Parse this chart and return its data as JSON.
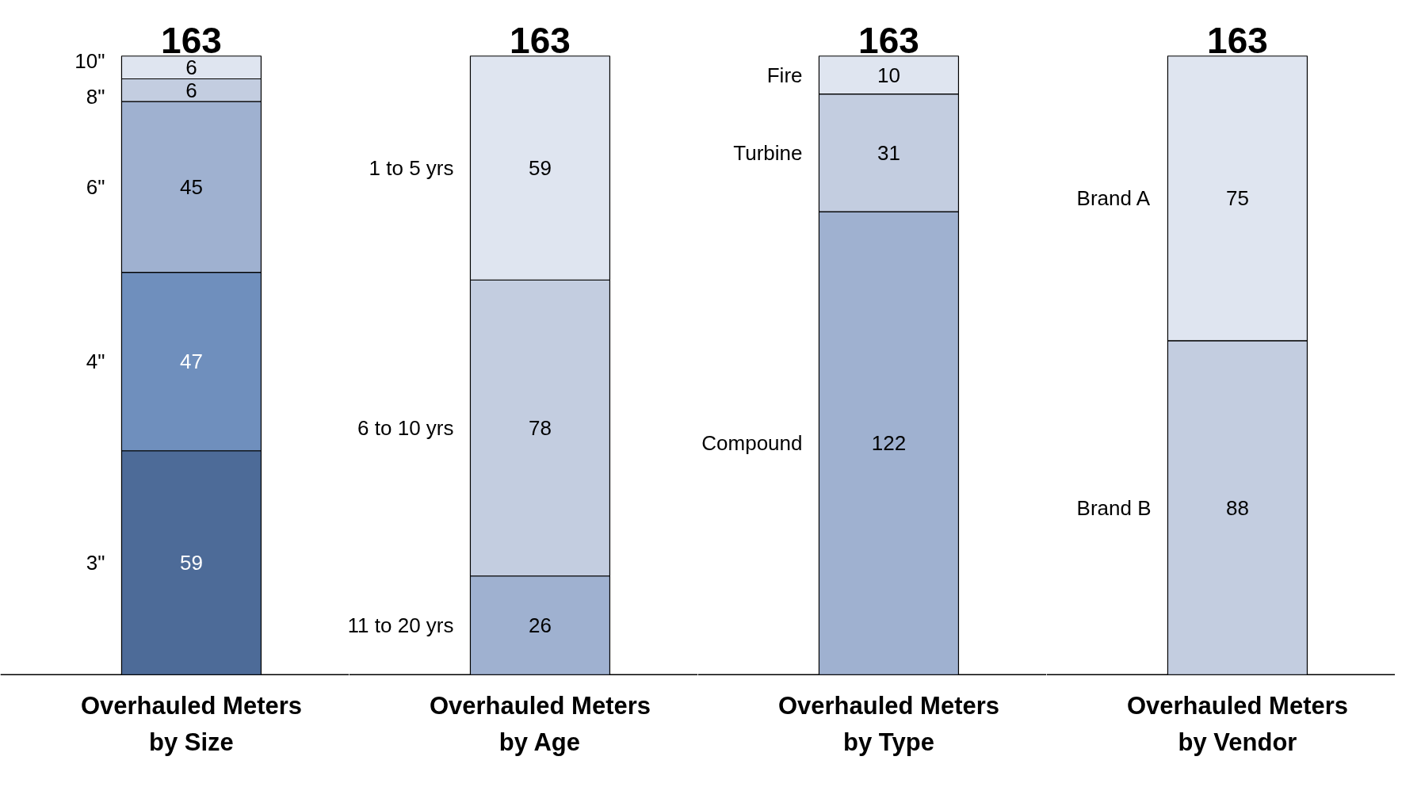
{
  "chart_data": [
    {
      "type": "bar",
      "stacked": true,
      "data_labels": true,
      "title": "Overhauled Meters by Size",
      "categories": [
        null
      ],
      "totals": [
        "163"
      ],
      "series": [
        {
          "name": "3\"",
          "color": "#4d6b98",
          "values": [
            59
          ]
        },
        {
          "name": "4\"",
          "color": "#6f8fbd",
          "values": [
            47
          ]
        },
        {
          "name": "6\"",
          "color": "#9fb1d0",
          "values": [
            45
          ]
        },
        {
          "name": "8\"",
          "color": "#c3cde0",
          "values": [
            6
          ]
        },
        {
          "name": "10\"",
          "color": "#dfe5f0",
          "values": [
            6
          ]
        }
      ]
    },
    {
      "type": "bar",
      "stacked": true,
      "data_labels": true,
      "title": "Overhauled Meters by Age",
      "categories": [
        null
      ],
      "totals": [
        "163"
      ],
      "series": [
        {
          "name": "11 to 20 yrs",
          "color": "#9fb1d0",
          "values": [
            26
          ]
        },
        {
          "name": "6 to 10 yrs",
          "color": "#c3cde0",
          "values": [
            78
          ]
        },
        {
          "name": "1 to 5 yrs",
          "color": "#dfe5f0",
          "values": [
            59
          ]
        }
      ]
    },
    {
      "type": "bar",
      "stacked": true,
      "data_labels": true,
      "title": "Overhauled Meters by Type",
      "categories": [
        null
      ],
      "totals": [
        "163"
      ],
      "series": [
        {
          "name": "Compound",
          "color": "#9fb1d0",
          "values": [
            122
          ]
        },
        {
          "name": "Turbine",
          "color": "#c3cde0",
          "values": [
            31
          ]
        },
        {
          "name": "Fire",
          "color": "#dfe5f0",
          "values": [
            10
          ]
        }
      ]
    },
    {
      "type": "bar",
      "stacked": true,
      "data_labels": true,
      "title": "Overhauled Meters by Vendor",
      "categories": [
        null
      ],
      "totals": [
        "163"
      ],
      "series": [
        {
          "name": "Brand B",
          "color": "#c3cde0",
          "values": [
            88
          ]
        },
        {
          "name": "Brand A",
          "color": "#dfe5f0",
          "values": [
            75
          ]
        }
      ]
    }
  ]
}
